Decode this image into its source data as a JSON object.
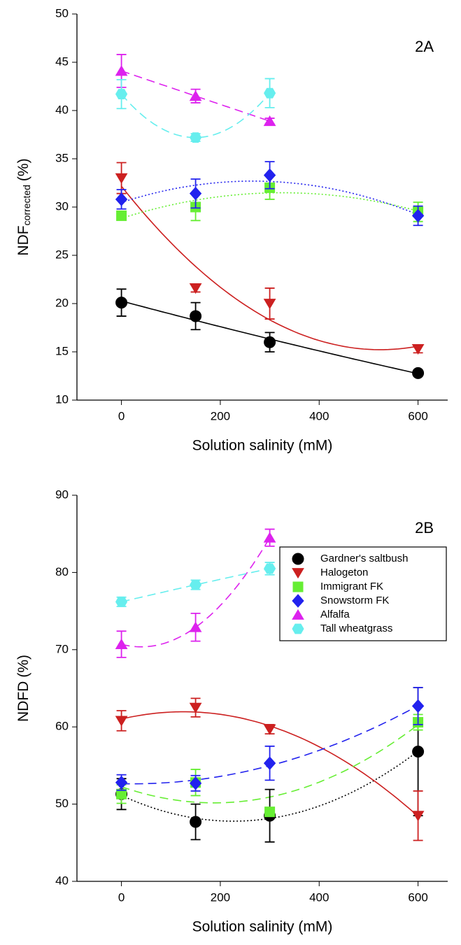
{
  "chart_data": [
    {
      "type": "scatter",
      "annotation": "2A",
      "xlabel": "Solution salinity (mM)",
      "ylabel": "NDF",
      "ylabel_sub": "corrected",
      "ylabel_unit": "(%)",
      "x": [
        0,
        150,
        300,
        600
      ],
      "xlim": [
        -90,
        660
      ],
      "xticks": [
        0,
        200,
        400,
        600
      ],
      "ylim": [
        10,
        50
      ],
      "yticks": [
        10,
        15,
        20,
        25,
        30,
        35,
        40,
        45,
        50
      ],
      "series": [
        {
          "color": "#000000",
          "marker": "circle",
          "line_style": "solid",
          "values": [
            20.1,
            18.7,
            16.0,
            12.8
          ],
          "errors": [
            1.4,
            1.4,
            1.0,
            0.3
          ]
        },
        {
          "color": "#cc2020",
          "marker": "triangle-down",
          "line_style": "solid",
          "values": [
            33.0,
            21.6,
            20.0,
            15.3
          ],
          "errors": [
            1.6,
            0.4,
            1.6,
            0.4
          ]
        },
        {
          "color": "#66ee33",
          "marker": "square",
          "line_style": "dotted",
          "values": [
            29.1,
            30.0,
            32.0,
            29.5
          ],
          "errors": [
            0.4,
            1.4,
            1.2,
            1.0
          ]
        },
        {
          "color": "#2222ee",
          "marker": "diamond",
          "line_style": "dotted",
          "values": [
            30.8,
            31.4,
            33.3,
            29.1
          ],
          "errors": [
            1.0,
            1.5,
            1.4,
            1.0
          ]
        },
        {
          "color": "#dd22ee",
          "marker": "triangle-up",
          "line_style": "dashed",
          "values": [
            44.1,
            41.5,
            38.9,
            null
          ],
          "errors": [
            1.7,
            0.7,
            0.3,
            null
          ]
        },
        {
          "color": "#66eeee",
          "marker": "hexagon",
          "line_style": "dashed",
          "values": [
            41.7,
            37.2,
            41.8,
            null
          ],
          "errors": [
            1.5,
            0.4,
            1.5,
            null
          ]
        }
      ]
    },
    {
      "type": "scatter",
      "annotation": "2B",
      "xlabel": "Solution salinity (mM)",
      "ylabel": "NDFD",
      "ylabel_unit": "(%)",
      "legend": "upper right",
      "x": [
        0,
        150,
        300,
        600
      ],
      "xlim": [
        -90,
        660
      ],
      "xticks": [
        0,
        200,
        400,
        600
      ],
      "ylim": [
        40,
        90
      ],
      "yticks": [
        40,
        50,
        60,
        70,
        80,
        90
      ],
      "series": [
        {
          "name": "Gardner's saltbush",
          "color": "#000000",
          "marker": "circle",
          "line_style": "dotted",
          "values": [
            51.3,
            47.7,
            48.5,
            56.8
          ],
          "errors": [
            2.0,
            2.3,
            3.4,
            8.3
          ]
        },
        {
          "name": "Halogeton",
          "color": "#cc2020",
          "marker": "triangle-down",
          "line_style": "solid",
          "values": [
            60.8,
            62.5,
            59.7,
            48.5
          ],
          "errors": [
            1.3,
            1.2,
            0.6,
            3.2
          ]
        },
        {
          "name": "Immigrant FK",
          "color": "#66ee33",
          "marker": "square",
          "line_style": "dashed",
          "values": [
            51.3,
            52.8,
            49.0,
            60.6
          ],
          "errors": [
            1.2,
            1.7,
            0.5,
            1.0
          ]
        },
        {
          "name": "Snowstorm FK",
          "color": "#2222ee",
          "marker": "diamond",
          "line_style": "dashed",
          "values": [
            52.8,
            52.7,
            55.3,
            62.7
          ],
          "errors": [
            1.0,
            1.0,
            2.2,
            2.4
          ]
        },
        {
          "name": "Alfalfa",
          "color": "#dd22ee",
          "marker": "triangle-up",
          "line_style": "dashed",
          "values": [
            70.7,
            72.9,
            84.5,
            null
          ],
          "errors": [
            1.7,
            1.8,
            1.1,
            null
          ]
        },
        {
          "name": "Tall wheatgrass",
          "color": "#66eeee",
          "marker": "hexagon",
          "line_style": "dashed",
          "values": [
            76.2,
            78.4,
            80.5,
            null
          ],
          "errors": [
            0.6,
            0.6,
            0.8,
            null
          ]
        }
      ]
    }
  ]
}
